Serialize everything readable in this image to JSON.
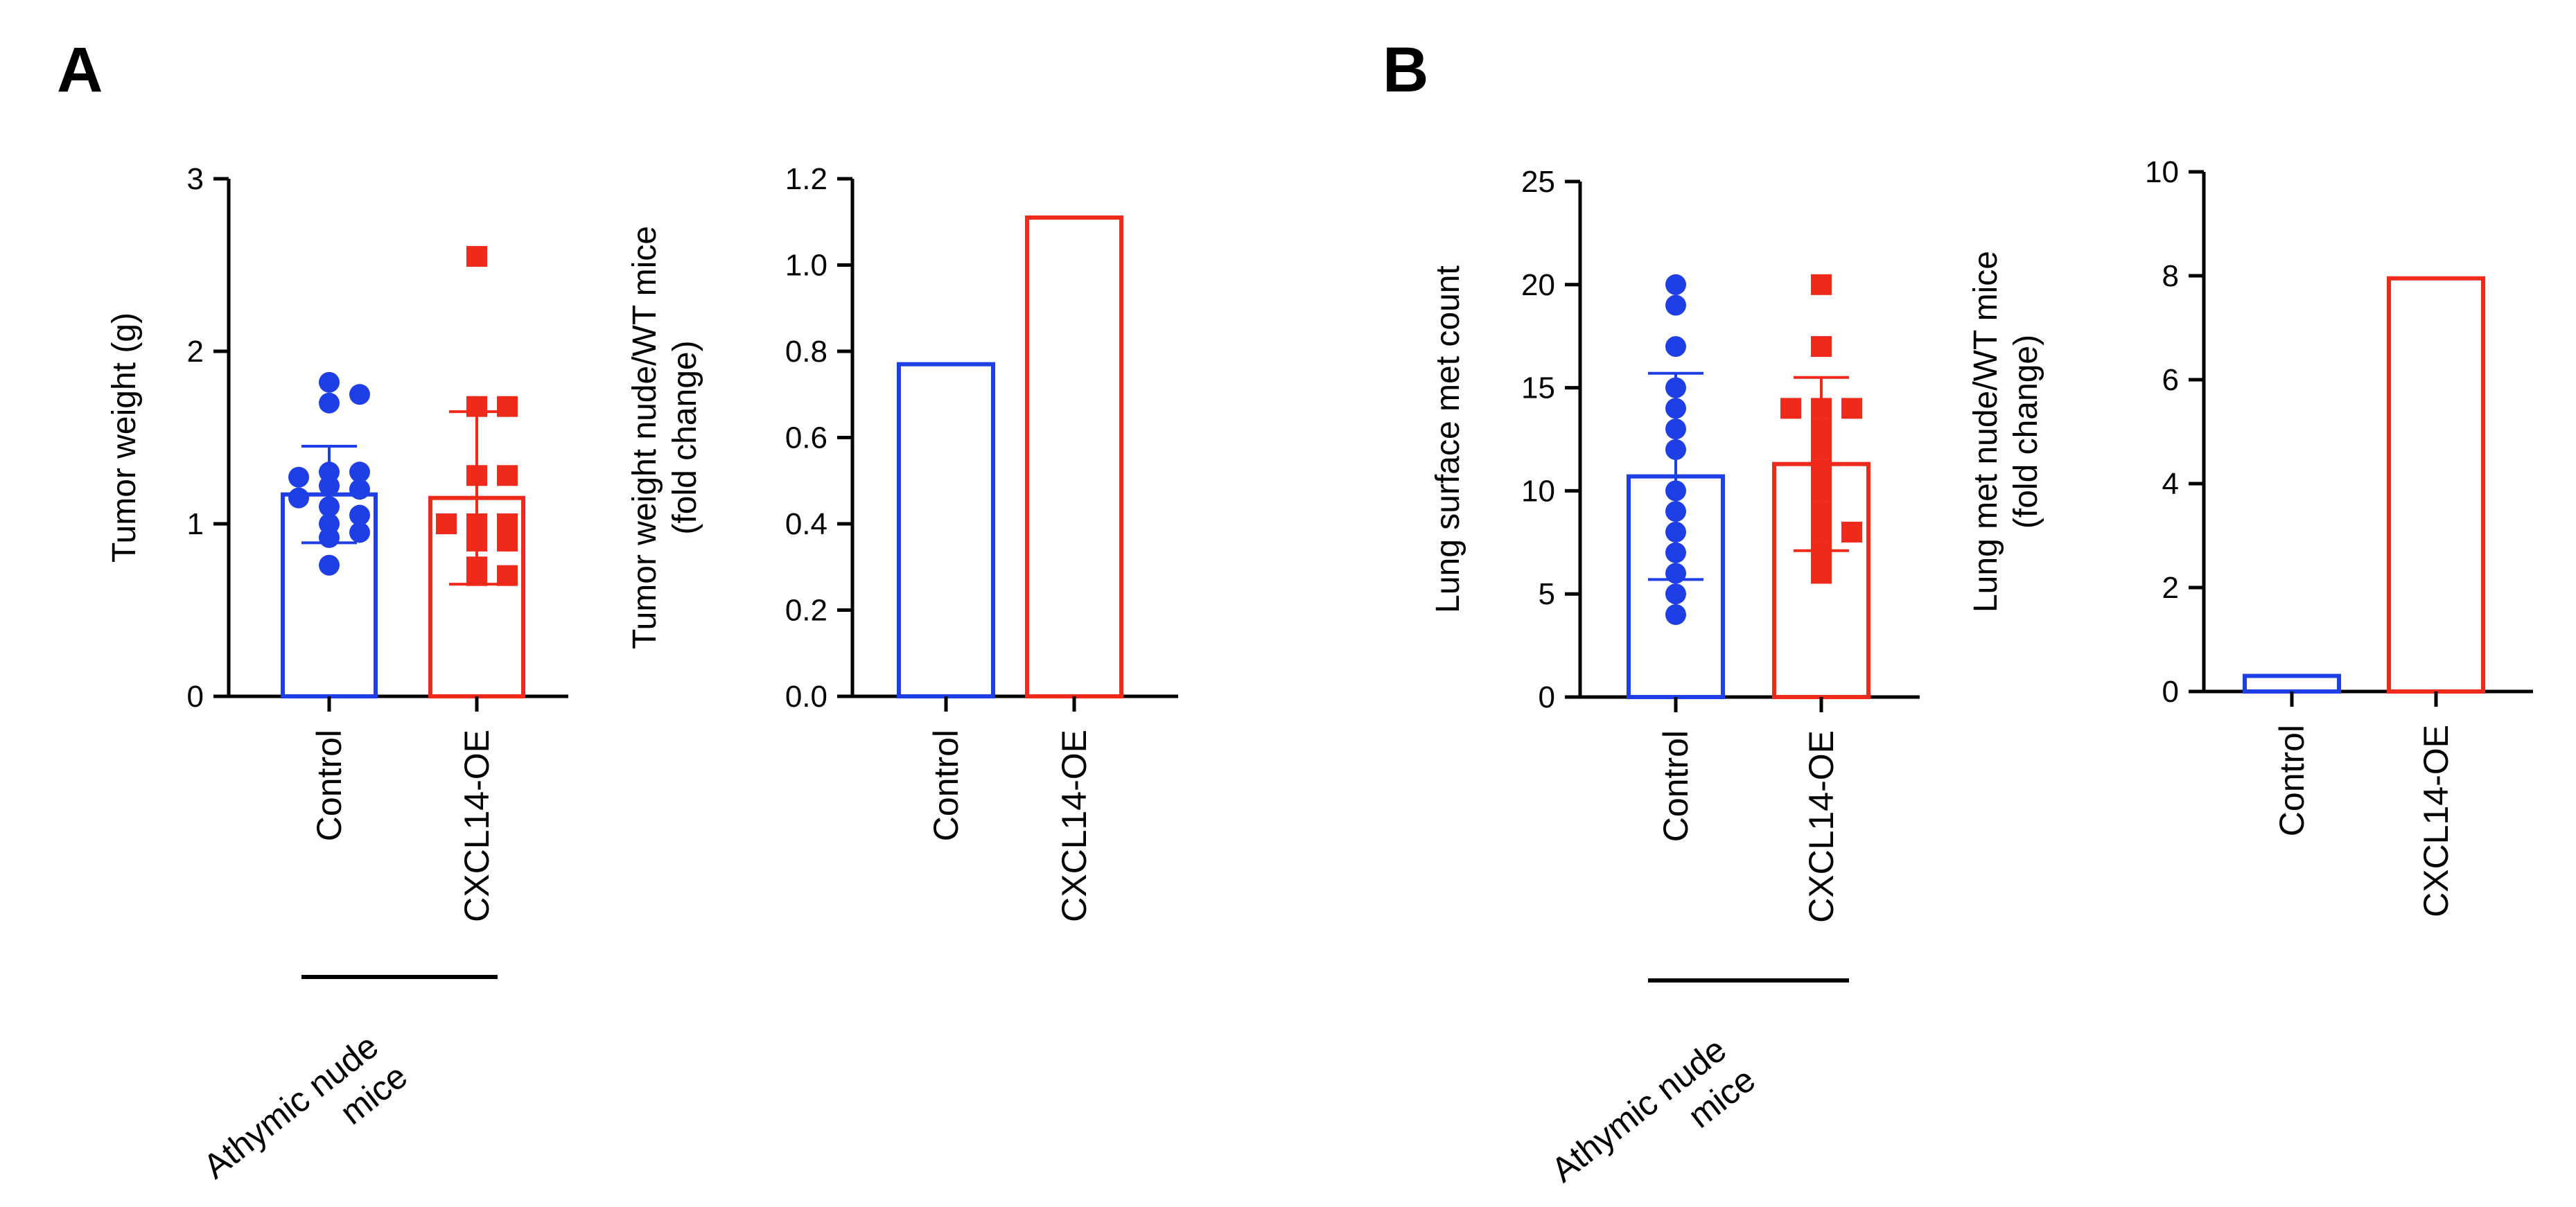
{
  "panels": [
    {
      "letter": "A",
      "group_label_line1": "Athymic nude",
      "group_label_line2": "mice"
    },
    {
      "letter": "B",
      "group_label_line1": "Athymic nude",
      "group_label_line2": "mice"
    }
  ],
  "colors": {
    "control": "#1f3fe6",
    "oe": "#f02a1a",
    "axis": "#000000"
  },
  "chart_data": [
    {
      "type": "bar",
      "panel": "A",
      "ylabel_lines": [
        "Tumor weight (g)"
      ],
      "categories": [
        "Control",
        "CXCL14-OE"
      ],
      "values": [
        1.17,
        1.15
      ],
      "errors": [
        0.28,
        0.5
      ],
      "ylim": [
        0,
        3
      ],
      "yticks": [
        0,
        1,
        2,
        3
      ],
      "tick_labels": [
        "0",
        "1",
        "2",
        "3"
      ],
      "points": [
        [
          1.82,
          1.75,
          1.7,
          1.3,
          1.3,
          1.27,
          1.22,
          1.2,
          1.15,
          1.1,
          1.05,
          1.0,
          0.95,
          0.92,
          0.76
        ],
        [
          2.55,
          1.68,
          1.68,
          1.28,
          1.28,
          1.0,
          1.0,
          1.0,
          0.9,
          0.9,
          0.75,
          0.7,
          0.7
        ]
      ],
      "group_bracket": true
    },
    {
      "type": "bar",
      "panel": "A",
      "ylabel_lines": [
        "Tumor weight nude/WT mice",
        "(fold change)"
      ],
      "categories": [
        "Control",
        "CXCL14-OE"
      ],
      "values": [
        0.77,
        1.11
      ],
      "ylim": [
        0,
        1.2
      ],
      "yticks": [
        0,
        0.2,
        0.4,
        0.6,
        0.8,
        1.0,
        1.2
      ],
      "tick_labels": [
        "0.0",
        "0.2",
        "0.4",
        "0.6",
        "0.8",
        "1.0",
        "1.2"
      ]
    },
    {
      "type": "bar",
      "panel": "B",
      "ylabel_lines": [
        "Lung surface met count"
      ],
      "categories": [
        "Control",
        "CXCL14-OE"
      ],
      "values": [
        10.7,
        11.3
      ],
      "errors": [
        5.0,
        4.2
      ],
      "ylim": [
        0,
        25
      ],
      "yticks": [
        0,
        5,
        10,
        15,
        20,
        25
      ],
      "tick_labels": [
        "0",
        "5",
        "10",
        "15",
        "20",
        "25"
      ],
      "points": [
        [
          20,
          19,
          17,
          15,
          14,
          13,
          12,
          10,
          9,
          8,
          7,
          6,
          5,
          4
        ],
        [
          20,
          17,
          14,
          14,
          14,
          13,
          12,
          11,
          10,
          9,
          8,
          8,
          7,
          6
        ]
      ],
      "group_bracket": true
    },
    {
      "type": "bar",
      "panel": "B",
      "ylabel_lines": [
        "Lung met nude/WT mice",
        "(fold change)"
      ],
      "categories": [
        "Control",
        "CXCL14-OE"
      ],
      "values": [
        0.3,
        7.95
      ],
      "ylim": [
        0,
        10
      ],
      "yticks": [
        0,
        2,
        4,
        6,
        8,
        10
      ],
      "tick_labels": [
        "0",
        "2",
        "4",
        "6",
        "8",
        "10"
      ]
    }
  ]
}
